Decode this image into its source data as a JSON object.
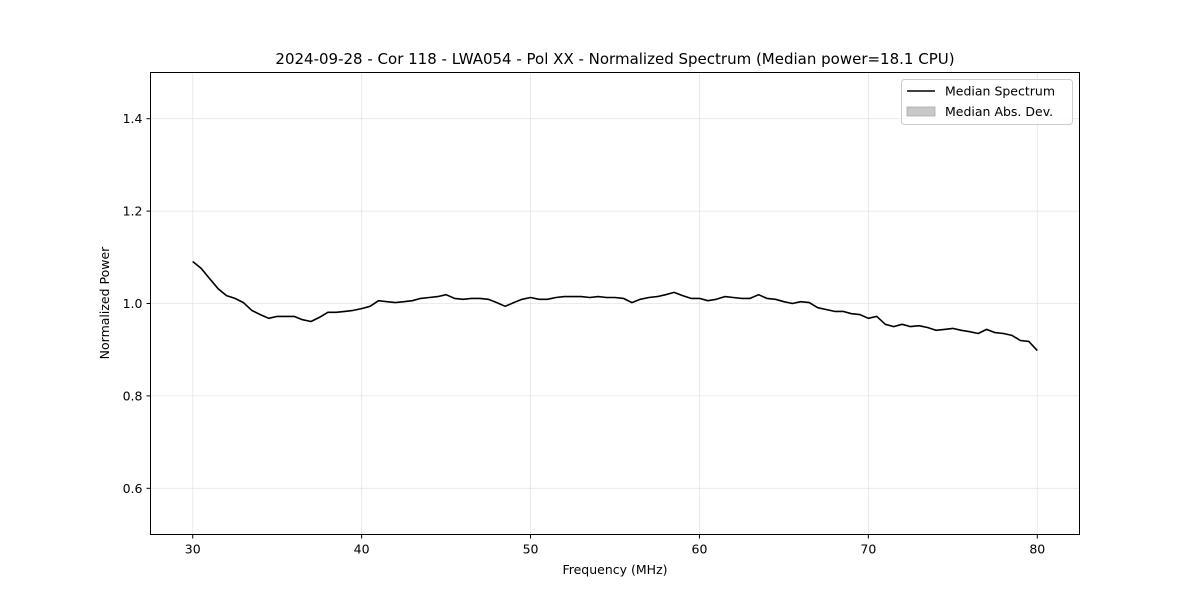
{
  "chart_data": {
    "type": "line",
    "title": "2024-09-28 - Cor 118 - LWA054 - Pol XX - Normalized Spectrum (Median power=18.1 CPU)",
    "xlabel": "Frequency (MHz)",
    "ylabel": "Normalized Power",
    "xlim": [
      27.5,
      82.5
    ],
    "ylim": [
      0.5,
      1.5
    ],
    "xticks": [
      30,
      40,
      50,
      60,
      70,
      80
    ],
    "xtick_labels": [
      "30",
      "40",
      "50",
      "60",
      "70",
      "80"
    ],
    "yticks": [
      0.6,
      0.8,
      1.0,
      1.2,
      1.4
    ],
    "ytick_labels": [
      "0.6",
      "0.8",
      "1.0",
      "1.2",
      "1.4"
    ],
    "grid": true,
    "legend_position": "top-right",
    "legend": [
      {
        "label": "Median Spectrum",
        "kind": "line",
        "color": "#000000"
      },
      {
        "label": "Median Abs. Dev.",
        "kind": "patch",
        "color": "#c8c8c8"
      }
    ],
    "series": [
      {
        "name": "Median Spectrum",
        "color": "#000000",
        "x_start": 30,
        "x_step": 0.5,
        "values": [
          1.091,
          1.076,
          1.054,
          1.032,
          1.017,
          1.011,
          1.002,
          0.985,
          0.976,
          0.968,
          0.972,
          0.972,
          0.972,
          0.965,
          0.961,
          0.97,
          0.981,
          0.981,
          0.983,
          0.985,
          0.989,
          0.994,
          1.006,
          1.004,
          1.002,
          1.004,
          1.006,
          1.011,
          1.013,
          1.015,
          1.019,
          1.011,
          1.009,
          1.011,
          1.011,
          1.009,
          1.002,
          0.994,
          1.002,
          1.009,
          1.013,
          1.009,
          1.009,
          1.013,
          1.015,
          1.015,
          1.015,
          1.013,
          1.015,
          1.013,
          1.013,
          1.011,
          1.002,
          1.009,
          1.013,
          1.015,
          1.019,
          1.024,
          1.017,
          1.011,
          1.011,
          1.006,
          1.009,
          1.015,
          1.013,
          1.011,
          1.011,
          1.019,
          1.011,
          1.009,
          1.004,
          1.0,
          1.004,
          1.002,
          0.991,
          0.987,
          0.983,
          0.983,
          0.978,
          0.976,
          0.968,
          0.972,
          0.955,
          0.95,
          0.955,
          0.95,
          0.952,
          0.948,
          0.942,
          0.944,
          0.946,
          0.942,
          0.939,
          0.935,
          0.944,
          0.937,
          0.935,
          0.931,
          0.92,
          0.918,
          0.898
        ]
      }
    ]
  }
}
